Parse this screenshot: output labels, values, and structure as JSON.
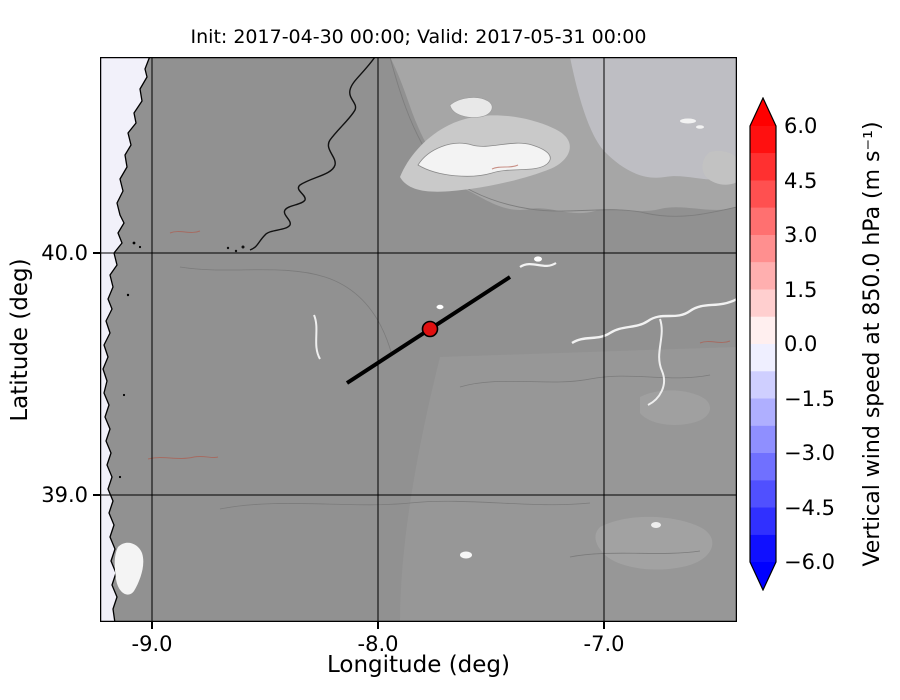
{
  "figure": {
    "title": "Init: 2017-04-30 00:00; Valid: 2017-05-31 00:00",
    "xlabel": "Longitude (deg)",
    "ylabel": "Latitude (deg)"
  },
  "axes": {
    "x_tick_labels": [
      "-9.0",
      "-8.0",
      "-7.0"
    ],
    "y_tick_labels": [
      "40.0",
      "39.0"
    ]
  },
  "colorbar": {
    "label": "Vertical wind speed at 850.0 hPa (m s⁻¹)",
    "tick_labels": [
      "6.0",
      "4.5",
      "3.0",
      "1.5",
      "0.0",
      "−1.5",
      "−3.0",
      "−4.5",
      "−6.0"
    ],
    "over_color": "#ff0000",
    "under_color": "#0000ff",
    "band_colors": [
      "#ff1010",
      "#ff3030",
      "#ff5050",
      "#ff7070",
      "#ff8f8f",
      "#ffafaf",
      "#ffcfcf",
      "#ffefef",
      "#efefff",
      "#cfcfff",
      "#afafff",
      "#8f8fff",
      "#7070ff",
      "#5050ff",
      "#3030ff",
      "#1010ff"
    ]
  },
  "map": {
    "marker_color": "#e01010",
    "cross_section_color": "#000000",
    "ocean_color": "#f2f1fa",
    "land_color": "#919191"
  },
  "chart_data": {
    "type": "heatmap",
    "title": "Init: 2017-04-30 00:00; Valid: 2017-05-31 00:00",
    "xlabel": "Longitude (deg)",
    "ylabel": "Latitude (deg)",
    "xlim": [
      -9.25,
      -6.4
    ],
    "ylim": [
      38.45,
      40.8
    ],
    "x_ticks": [
      -9.0,
      -8.0,
      -7.0
    ],
    "y_ticks": [
      39.0,
      40.0
    ],
    "grid": true,
    "colorbar": {
      "label": "Vertical wind speed at 850.0 hPa (m s⁻¹)",
      "ticks": [
        6.0,
        4.5,
        3.0,
        1.5,
        0.0,
        -1.5,
        -3.0,
        -4.5,
        -6.0
      ],
      "vmin": -6.0,
      "vmax": 6.0,
      "cmap": "blue-white-red (bwr), discrete levels every 0.75",
      "extend": "both"
    },
    "field_summary": "Vertical wind speed approximately 0 m/s over the whole domain; background shows gray terrain shading of central Portugal/western Spain with the Atlantic coastline along the west edge and lighter high-terrain ridges in the north",
    "annotations": {
      "cross_section_line": {
        "lon_from": -8.14,
        "lat_from": 39.46,
        "lon_to": -7.42,
        "lat_to": 39.9
      },
      "marker": {
        "lon": -7.77,
        "lat": 39.69,
        "style": "red filled circle with black edge"
      }
    }
  }
}
